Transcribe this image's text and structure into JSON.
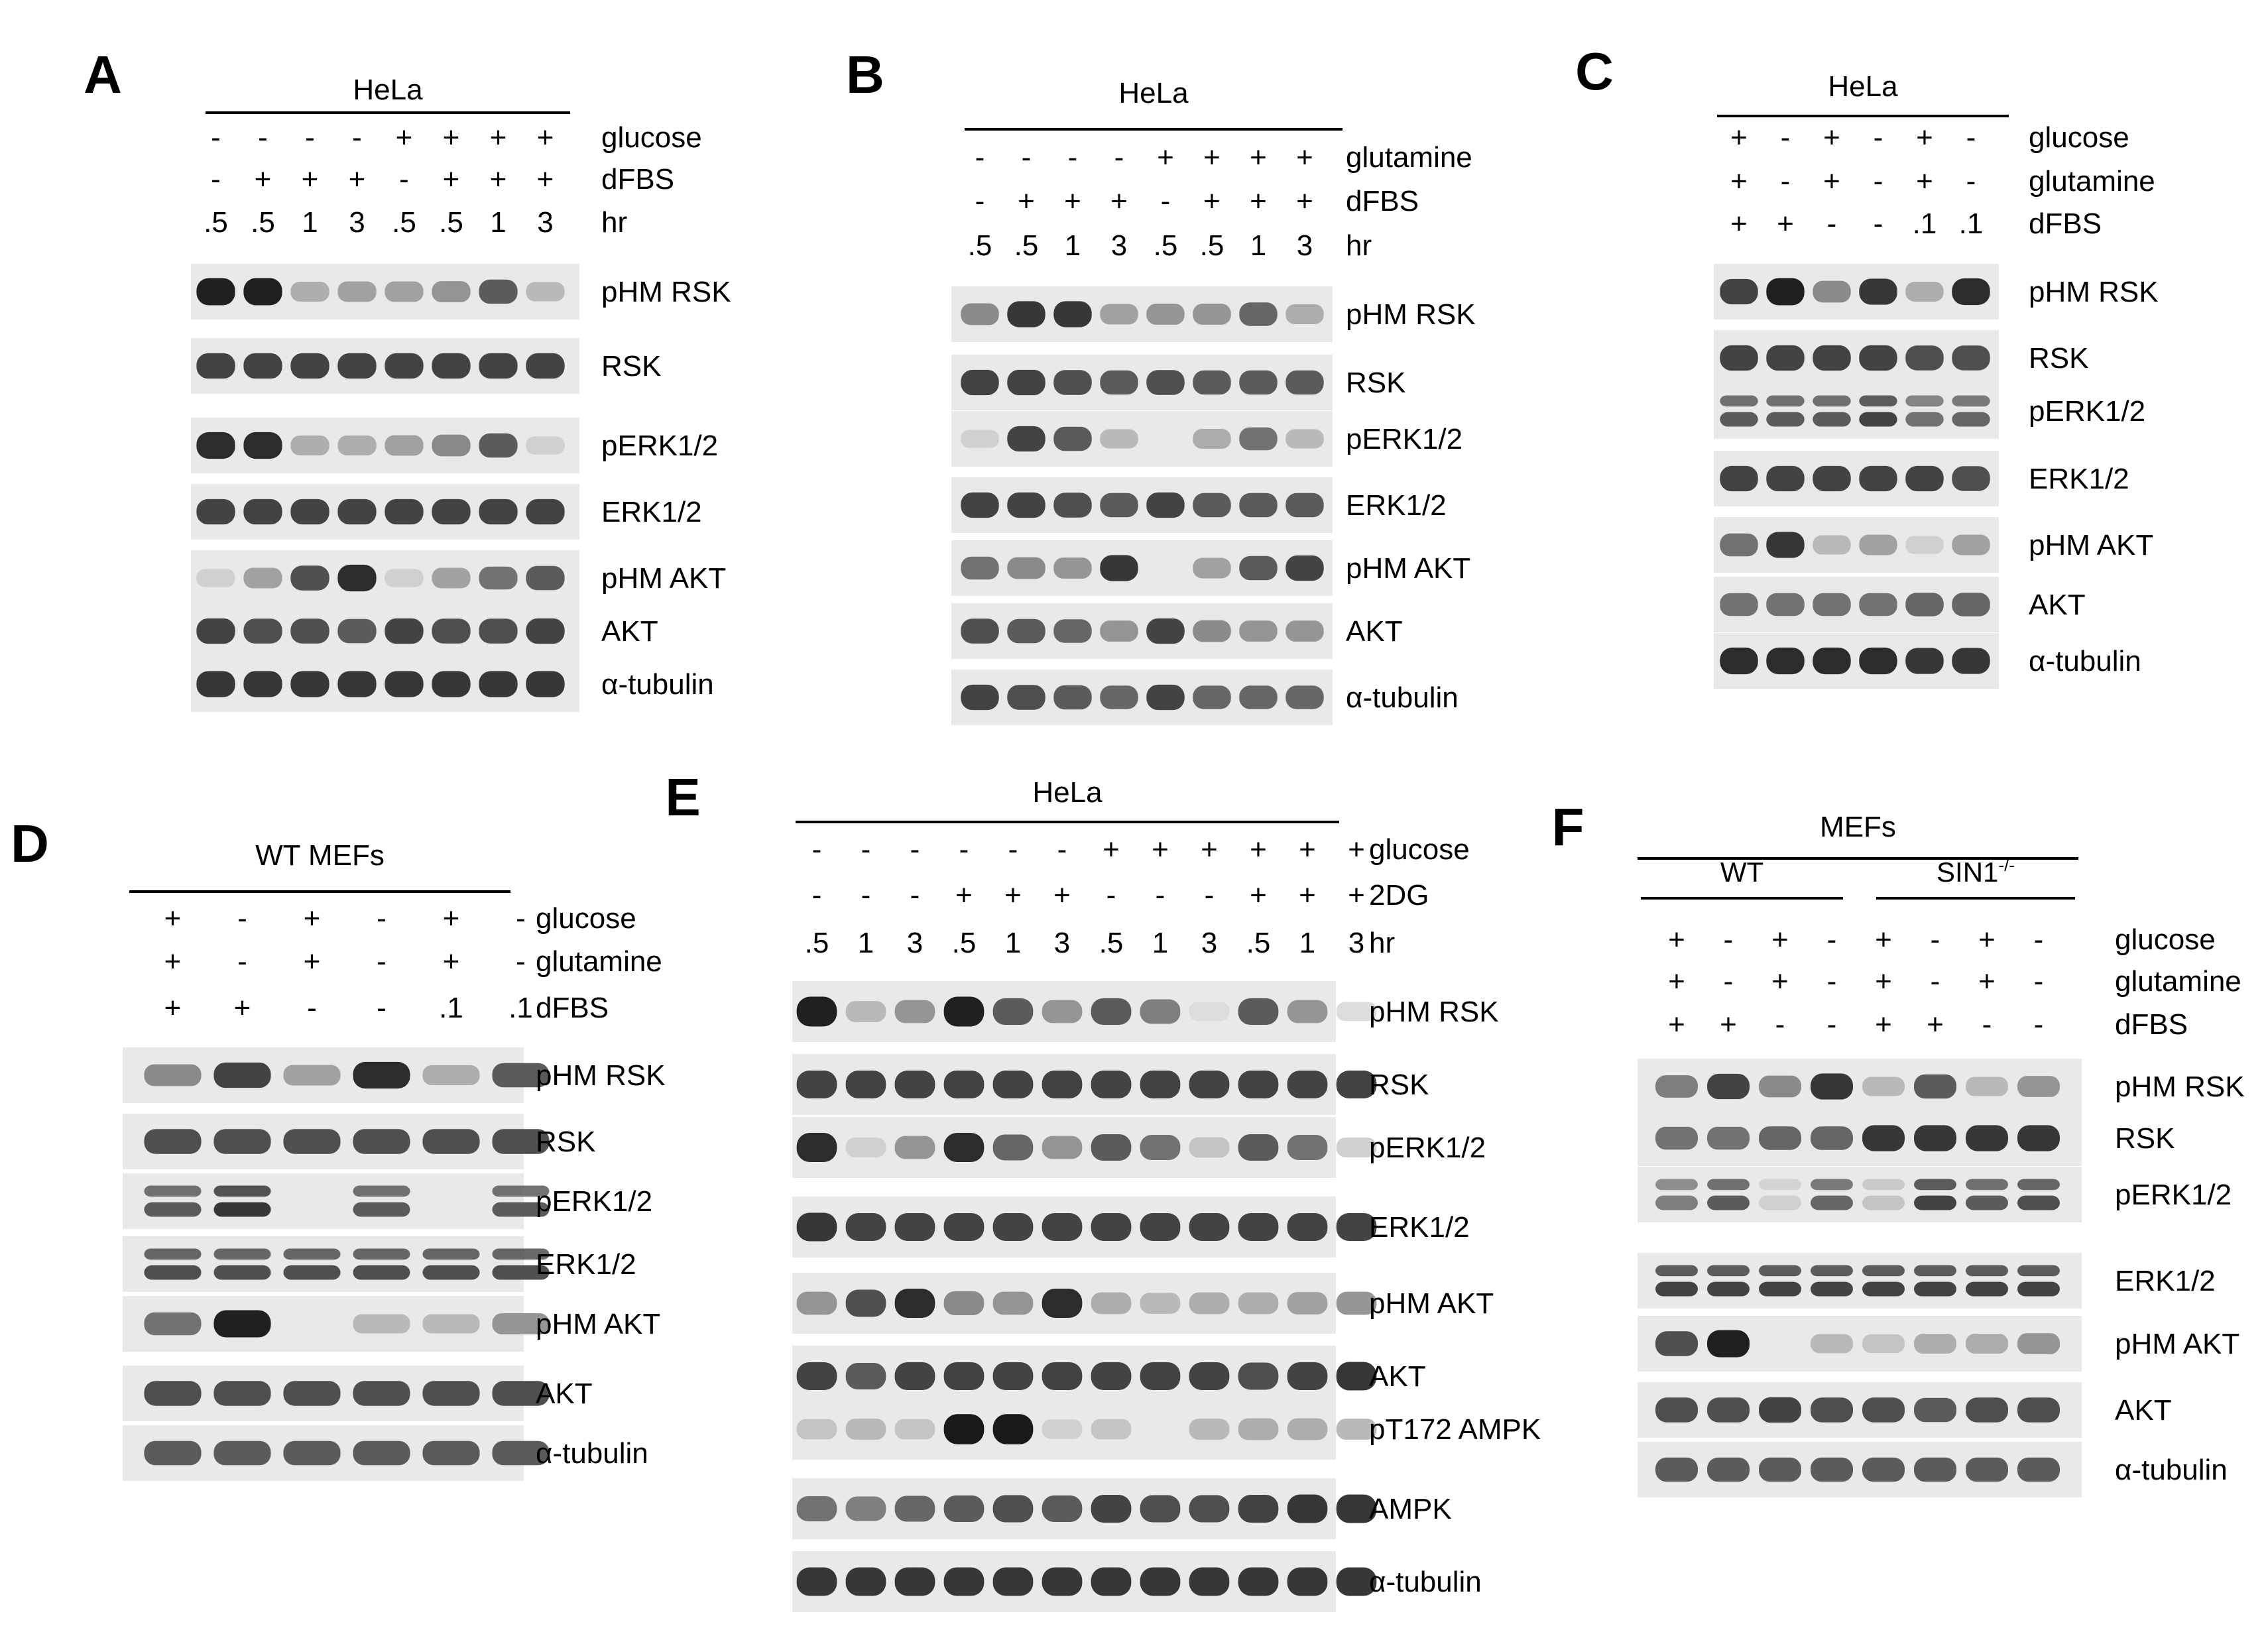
{
  "panels": [
    {
      "letter": "A",
      "header": "HeLa",
      "lanes": 8,
      "conditions": [
        {
          "name": "glucose",
          "values": [
            "-",
            "-",
            "-",
            "-",
            "+",
            "+",
            "+",
            "+"
          ]
        },
        {
          "name": "dFBS",
          "values": [
            "-",
            "+",
            "+",
            "+",
            "-",
            "+",
            "+",
            "+"
          ]
        },
        {
          "name": "hr",
          "values": [
            ".5",
            ".5",
            "1",
            "3",
            ".5",
            ".5",
            "1",
            "3"
          ]
        }
      ],
      "blots": [
        {
          "label": "pHM RSK",
          "intensity": [
            0.95,
            0.95,
            0.35,
            0.4,
            0.4,
            0.45,
            0.7,
            0.3
          ],
          "style": "single"
        },
        {
          "label": "RSK",
          "intensity": [
            0.8,
            0.8,
            0.8,
            0.8,
            0.8,
            0.8,
            0.8,
            0.8
          ],
          "style": "single"
        },
        {
          "label": "pERK1/2",
          "intensity": [
            0.9,
            0.9,
            0.35,
            0.35,
            0.4,
            0.5,
            0.7,
            0.2
          ],
          "style": "single"
        },
        {
          "label": "ERK1/2",
          "intensity": [
            0.8,
            0.8,
            0.8,
            0.8,
            0.8,
            0.8,
            0.8,
            0.8
          ],
          "style": "single"
        },
        {
          "label": "pHM AKT",
          "intensity": [
            0.2,
            0.4,
            0.75,
            0.9,
            0.2,
            0.4,
            0.6,
            0.7
          ],
          "style": "single"
        },
        {
          "label": "AKT",
          "intensity": [
            0.8,
            0.75,
            0.75,
            0.7,
            0.8,
            0.75,
            0.75,
            0.8
          ],
          "style": "single"
        },
        {
          "label": "α-tubulin",
          "intensity": [
            0.85,
            0.85,
            0.85,
            0.85,
            0.85,
            0.85,
            0.85,
            0.85
          ],
          "style": "single"
        }
      ]
    },
    {
      "letter": "B",
      "header": "HeLa",
      "lanes": 8,
      "conditions": [
        {
          "name": "glutamine",
          "values": [
            "-",
            "-",
            "-",
            "-",
            "+",
            "+",
            "+",
            "+"
          ]
        },
        {
          "name": "dFBS",
          "values": [
            "-",
            "+",
            "+",
            "+",
            "-",
            "+",
            "+",
            "+"
          ]
        },
        {
          "name": "hr",
          "values": [
            ".5",
            ".5",
            "1",
            "3",
            ".5",
            ".5",
            "1",
            "3"
          ]
        }
      ],
      "blots": [
        {
          "label": "pHM RSK",
          "intensity": [
            0.5,
            0.85,
            0.85,
            0.4,
            0.45,
            0.45,
            0.65,
            0.35
          ],
          "style": "single"
        },
        {
          "label": "RSK",
          "intensity": [
            0.8,
            0.8,
            0.75,
            0.7,
            0.75,
            0.7,
            0.7,
            0.7
          ],
          "style": "single"
        },
        {
          "label": "pERK1/2",
          "intensity": [
            0.2,
            0.8,
            0.7,
            0.3,
            0.1,
            0.35,
            0.6,
            0.3
          ],
          "style": "single"
        },
        {
          "label": "ERK1/2",
          "intensity": [
            0.8,
            0.8,
            0.75,
            0.7,
            0.8,
            0.7,
            0.7,
            0.7
          ],
          "style": "single"
        },
        {
          "label": "pHM AKT",
          "intensity": [
            0.6,
            0.5,
            0.45,
            0.85,
            0.1,
            0.4,
            0.7,
            0.8
          ],
          "style": "single"
        },
        {
          "label": "AKT",
          "intensity": [
            0.75,
            0.7,
            0.65,
            0.45,
            0.8,
            0.5,
            0.45,
            0.45
          ],
          "style": "single"
        },
        {
          "label": "α-tubulin",
          "intensity": [
            0.8,
            0.75,
            0.7,
            0.65,
            0.8,
            0.65,
            0.65,
            0.65
          ],
          "style": "single"
        }
      ]
    },
    {
      "letter": "C",
      "header": "HeLa",
      "lanes": 6,
      "conditions": [
        {
          "name": "glucose",
          "values": [
            "+",
            "-",
            "+",
            "-",
            "+",
            "-"
          ]
        },
        {
          "name": "glutamine",
          "values": [
            "+",
            "-",
            "+",
            "-",
            "+",
            "-"
          ]
        },
        {
          "name": "dFBS",
          "values": [
            "+",
            "+",
            "-",
            "-",
            ".1",
            ".1"
          ]
        }
      ],
      "blots": [
        {
          "label": "pHM RSK",
          "intensity": [
            0.8,
            0.95,
            0.5,
            0.85,
            0.35,
            0.9
          ],
          "style": "single"
        },
        {
          "label": "RSK",
          "intensity": [
            0.8,
            0.8,
            0.8,
            0.8,
            0.75,
            0.75
          ],
          "style": "single"
        },
        {
          "label": "pERK1/2",
          "intensity": [
            0.7,
            0.7,
            0.7,
            0.8,
            0.6,
            0.65
          ],
          "style": "double"
        },
        {
          "label": "ERK1/2",
          "intensity": [
            0.8,
            0.8,
            0.8,
            0.8,
            0.8,
            0.75
          ],
          "style": "single"
        },
        {
          "label": "pHM AKT",
          "intensity": [
            0.6,
            0.85,
            0.3,
            0.4,
            0.2,
            0.4
          ],
          "style": "single"
        },
        {
          "label": "AKT",
          "intensity": [
            0.6,
            0.6,
            0.6,
            0.6,
            0.65,
            0.65
          ],
          "style": "single"
        },
        {
          "label": "α-tubulin",
          "intensity": [
            0.9,
            0.9,
            0.9,
            0.9,
            0.85,
            0.85
          ],
          "style": "single"
        }
      ]
    },
    {
      "letter": "D",
      "header": "WT MEFs",
      "lanes": 6,
      "conditions": [
        {
          "name": "glucose",
          "values": [
            "+",
            "-",
            "+",
            "-",
            "+",
            "-"
          ]
        },
        {
          "name": "glutamine",
          "values": [
            "+",
            "-",
            "+",
            "-",
            "+",
            "-"
          ]
        },
        {
          "name": "dFBS",
          "values": [
            "+",
            "+",
            "-",
            "-",
            ".1",
            ".1"
          ]
        }
      ],
      "blots": [
        {
          "label": "pHM RSK",
          "intensity": [
            0.5,
            0.8,
            0.4,
            0.9,
            0.35,
            0.7
          ],
          "style": "single"
        },
        {
          "label": "RSK",
          "intensity": [
            0.75,
            0.75,
            0.75,
            0.75,
            0.75,
            0.75
          ],
          "style": "single"
        },
        {
          "label": "pERK1/2",
          "intensity": [
            0.7,
            0.85,
            0.1,
            0.7,
            0.1,
            0.7
          ],
          "style": "double"
        },
        {
          "label": "ERK1/2",
          "intensity": [
            0.75,
            0.75,
            0.75,
            0.75,
            0.75,
            0.75
          ],
          "style": "double"
        },
        {
          "label": "pHM AKT",
          "intensity": [
            0.6,
            0.95,
            0.1,
            0.3,
            0.3,
            0.45
          ],
          "style": "single"
        },
        {
          "label": "AKT",
          "intensity": [
            0.75,
            0.75,
            0.75,
            0.75,
            0.75,
            0.75
          ],
          "style": "single"
        },
        {
          "label": "α-tubulin",
          "intensity": [
            0.7,
            0.7,
            0.7,
            0.7,
            0.7,
            0.7
          ],
          "style": "single"
        }
      ]
    },
    {
      "letter": "E",
      "header": "HeLa",
      "lanes": 12,
      "conditions": [
        {
          "name": "glucose",
          "values": [
            "-",
            "-",
            "-",
            "-",
            "-",
            "-",
            "+",
            "+",
            "+",
            "+",
            "+",
            "+"
          ]
        },
        {
          "name": "2DG",
          "values": [
            "-",
            "-",
            "-",
            "+",
            "+",
            "+",
            "-",
            "-",
            "-",
            "+",
            "+",
            "+"
          ]
        },
        {
          "name": "hr",
          "values": [
            ".5",
            "1",
            "3",
            ".5",
            "1",
            "3",
            ".5",
            "1",
            "3",
            ".5",
            "1",
            "3"
          ]
        }
      ],
      "blots": [
        {
          "label": "pHM RSK",
          "intensity": [
            0.95,
            0.3,
            0.45,
            0.95,
            0.7,
            0.45,
            0.7,
            0.55,
            0.15,
            0.7,
            0.45,
            0.15
          ],
          "style": "single"
        },
        {
          "label": "RSK",
          "intensity": [
            0.8,
            0.8,
            0.8,
            0.8,
            0.8,
            0.8,
            0.8,
            0.8,
            0.8,
            0.8,
            0.8,
            0.8
          ],
          "style": "single"
        },
        {
          "label": "pERK1/2",
          "intensity": [
            0.9,
            0.2,
            0.45,
            0.9,
            0.65,
            0.45,
            0.7,
            0.6,
            0.25,
            0.7,
            0.6,
            0.2
          ],
          "style": "single"
        },
        {
          "label": "ERK1/2",
          "intensity": [
            0.85,
            0.8,
            0.8,
            0.8,
            0.8,
            0.8,
            0.8,
            0.8,
            0.8,
            0.8,
            0.8,
            0.8
          ],
          "style": "single"
        },
        {
          "label": "pHM AKT",
          "intensity": [
            0.45,
            0.75,
            0.9,
            0.5,
            0.45,
            0.9,
            0.35,
            0.3,
            0.35,
            0.35,
            0.4,
            0.45
          ],
          "style": "single"
        },
        {
          "label": "AKT",
          "intensity": [
            0.8,
            0.7,
            0.8,
            0.8,
            0.8,
            0.8,
            0.8,
            0.8,
            0.8,
            0.75,
            0.8,
            0.85
          ],
          "style": "single"
        },
        {
          "label": "pT172 AMPK",
          "intensity": [
            0.25,
            0.3,
            0.25,
            0.98,
            0.98,
            0.2,
            0.25,
            0.1,
            0.3,
            0.35,
            0.35,
            0.3
          ],
          "style": "single"
        },
        {
          "label": "AMPK",
          "intensity": [
            0.6,
            0.55,
            0.65,
            0.7,
            0.75,
            0.7,
            0.8,
            0.75,
            0.75,
            0.8,
            0.85,
            0.85
          ],
          "style": "single"
        },
        {
          "label": "α-tubulin",
          "intensity": [
            0.85,
            0.85,
            0.85,
            0.85,
            0.85,
            0.85,
            0.85,
            0.85,
            0.85,
            0.85,
            0.85,
            0.85
          ],
          "style": "single"
        }
      ]
    },
    {
      "letter": "F",
      "header": "MEFs",
      "groups": [
        {
          "label": "WT",
          "sup": ""
        },
        {
          "label": "SIN1",
          "sup": "-/-"
        }
      ],
      "lanes": 8,
      "conditions": [
        {
          "name": "glucose",
          "values": [
            "+",
            "-",
            "+",
            "-",
            "+",
            "-",
            "+",
            "-"
          ]
        },
        {
          "name": "glutamine",
          "values": [
            "+",
            "-",
            "+",
            "-",
            "+",
            "-",
            "+",
            "-"
          ]
        },
        {
          "name": "dFBS",
          "values": [
            "+",
            "+",
            "-",
            "-",
            "+",
            "+",
            "-",
            "-"
          ]
        }
      ],
      "blots": [
        {
          "label": "pHM RSK",
          "intensity": [
            0.55,
            0.8,
            0.5,
            0.85,
            0.3,
            0.7,
            0.3,
            0.45
          ],
          "style": "single"
        },
        {
          "label": "RSK",
          "intensity": [
            0.6,
            0.6,
            0.65,
            0.65,
            0.85,
            0.85,
            0.85,
            0.85
          ],
          "style": "single"
        },
        {
          "label": "pERK1/2",
          "intensity": [
            0.55,
            0.7,
            0.2,
            0.65,
            0.25,
            0.8,
            0.7,
            0.75
          ],
          "style": "double"
        },
        {
          "label": "ERK1/2",
          "intensity": [
            0.8,
            0.8,
            0.8,
            0.8,
            0.8,
            0.8,
            0.8,
            0.8
          ],
          "style": "double"
        },
        {
          "label": "pHM AKT",
          "intensity": [
            0.75,
            0.95,
            0.1,
            0.3,
            0.25,
            0.35,
            0.35,
            0.45
          ],
          "style": "single"
        },
        {
          "label": "AKT",
          "intensity": [
            0.75,
            0.75,
            0.8,
            0.75,
            0.75,
            0.7,
            0.75,
            0.75
          ],
          "style": "single"
        },
        {
          "label": "α-tubulin",
          "intensity": [
            0.7,
            0.7,
            0.7,
            0.7,
            0.7,
            0.7,
            0.7,
            0.7
          ],
          "style": "single"
        }
      ]
    }
  ]
}
